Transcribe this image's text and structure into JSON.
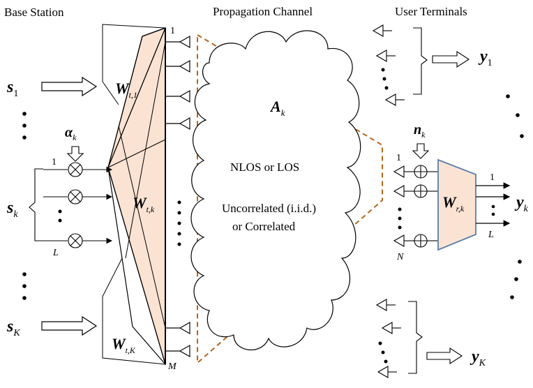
{
  "headers": {
    "base_station": "Base Station",
    "channel": "Propagation Channel",
    "user_terminals": "User Terminals"
  },
  "streams": {
    "s1": {
      "base": "s",
      "sub": "1"
    },
    "sk": {
      "base": "s",
      "sub": "k"
    },
    "sK": {
      "base": "s",
      "sub": "K"
    }
  },
  "alpha": {
    "base": "α",
    "sub": "k"
  },
  "precoders": {
    "w1": {
      "base": "W",
      "sub": "t,1"
    },
    "wk": {
      "base": "W",
      "sub": "t,k"
    },
    "wK": {
      "base": "W",
      "sub": "t,K"
    }
  },
  "channel": {
    "matrix": {
      "base": "A",
      "sub": "k"
    },
    "text1": "NLOS or LOS",
    "text2": "Uncorrelated (i.i.d.)",
    "text3": "or Correlated"
  },
  "noise": {
    "base": "n",
    "sub": "k"
  },
  "combiner": {
    "base": "W",
    "sub": "r,k"
  },
  "outputs": {
    "y1": {
      "base": "y",
      "sub": "1"
    },
    "yk": {
      "base": "y",
      "sub": "k"
    },
    "yK": {
      "base": "y",
      "sub": "K"
    }
  },
  "indices": {
    "one": "1",
    "L": "L",
    "M": "M",
    "N": "N"
  },
  "colors": {
    "fill": "#fbe3d4",
    "dashed": "#b5651d",
    "combiner_stroke": "#5a7fa8"
  }
}
